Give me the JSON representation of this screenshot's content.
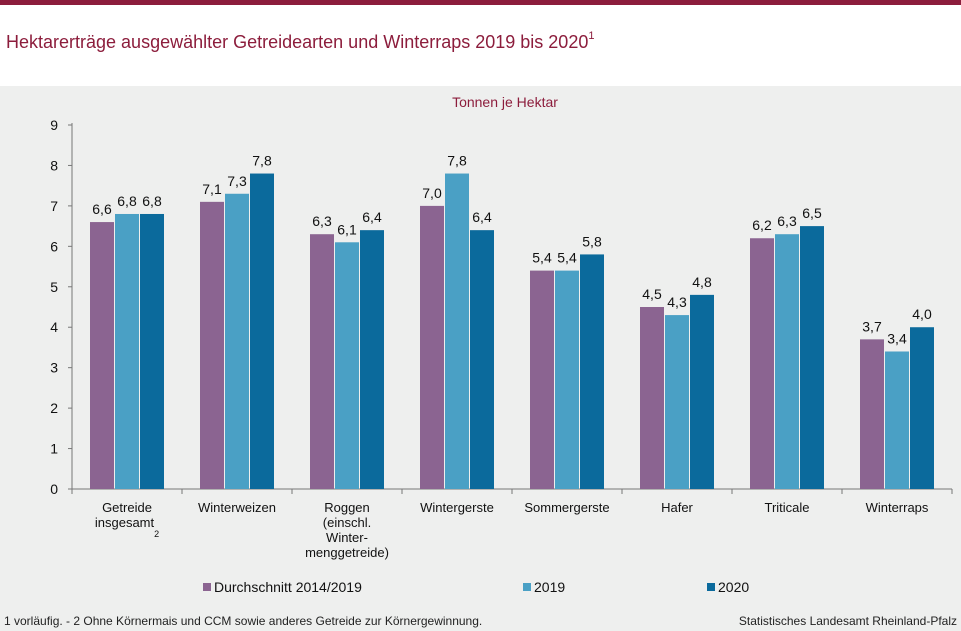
{
  "header": {
    "title": "Hektarerträge ausgewählter Getreidearten und Winterraps 2019 bis 2020",
    "title_footnote": "1"
  },
  "footer": {
    "note": "1 vorläufig.  - 2 Ohne Körnermais und CCM sowie anderes Getreide zur Körnergewinnung.",
    "source": "Statistisches Landesamt Rheinland-Pfalz"
  },
  "colors": {
    "brand": "#8c1d3c",
    "series": [
      "#8b6491",
      "#4aa0c5",
      "#0b6a9c"
    ]
  },
  "chart_data": {
    "type": "bar",
    "title": "Hektarerträge ausgewählter Getreidearten und Winterraps 2019 bis 2020",
    "unit_label": "Tonnen  je Hektar",
    "categories": [
      [
        "Getreide",
        "insgesamt²"
      ],
      [
        "Winterweizen"
      ],
      [
        "Roggen",
        "(einschl.",
        "Winter-",
        "menggetreide)"
      ],
      [
        "Wintergerste"
      ],
      [
        "Sommergerste"
      ],
      [
        "Hafer"
      ],
      [
        "Triticale"
      ],
      [
        "Winterraps"
      ]
    ],
    "series": [
      {
        "name": "Durchschnitt 2014/2019",
        "values": [
          6.6,
          7.1,
          6.3,
          7.0,
          5.4,
          4.5,
          6.2,
          3.7
        ],
        "labels": [
          "6,6",
          "7,1",
          "6,3",
          "7,0",
          "5,4",
          "4,5",
          "6,2",
          "3,7"
        ]
      },
      {
        "name": "2019",
        "values": [
          6.8,
          7.3,
          6.1,
          7.8,
          5.4,
          4.3,
          6.3,
          3.4
        ],
        "labels": [
          "6,8",
          "7,3",
          "6,1",
          "7,8",
          "5,4",
          "4,3",
          "6,3",
          "3,4"
        ]
      },
      {
        "name": "2020",
        "values": [
          6.8,
          7.8,
          6.4,
          6.4,
          5.8,
          4.8,
          6.5,
          4.0
        ],
        "labels": [
          "6,8",
          "7,8",
          "6,4",
          "6,4",
          "5,8",
          "4,8",
          "6,5",
          "4,0"
        ]
      }
    ],
    "ylim": [
      0,
      9
    ],
    "yticks": [
      0,
      1,
      2,
      3,
      4,
      5,
      6,
      7,
      8,
      9
    ],
    "grid": false,
    "legend_position": "bottom"
  }
}
